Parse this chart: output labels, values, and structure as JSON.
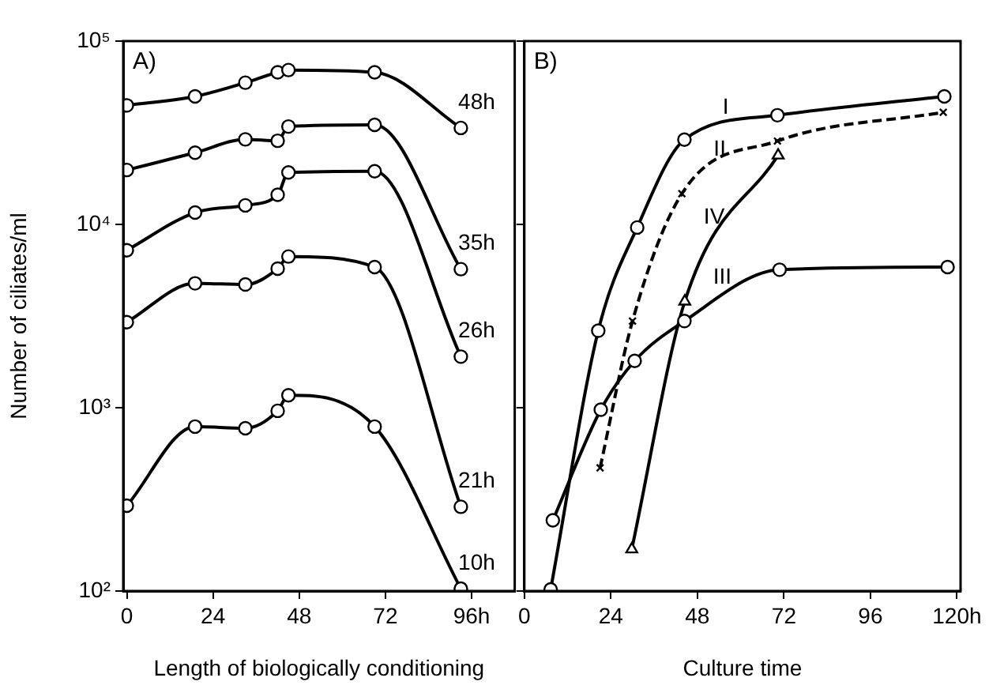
{
  "chart_data": [
    {
      "type": "line",
      "title": "A)",
      "xlabel": "Length of biologically conditioning",
      "ylabel": "Number of ciliates/ml",
      "log": "y",
      "marker": "circle",
      "legend": false,
      "grid": false,
      "x": [
        0,
        19,
        33,
        42,
        45,
        69,
        93
      ],
      "xlim": [
        -1,
        108
      ],
      "xticks": [
        0,
        24,
        48,
        72,
        {
          "value": 96,
          "label": "96h"
        }
      ],
      "ylim": [
        100,
        100000
      ],
      "yticks": [
        {
          "value": 100,
          "label": "10²"
        },
        {
          "value": 1000,
          "label": "10³"
        },
        {
          "value": 10000,
          "label": "10⁴"
        },
        {
          "value": 100000,
          "label": "10⁵"
        }
      ],
      "series": [
        {
          "name": "48h",
          "color": "#000000",
          "values": [
            44600,
            49900,
            59300,
            67600,
            69500,
            67600,
            33600
          ]
        },
        {
          "name": "35h",
          "color": "#000000",
          "values": [
            19800,
            24600,
            29100,
            28600,
            34200,
            34900,
            5700
          ]
        },
        {
          "name": "26h",
          "color": "#000000",
          "values": [
            7230,
            11600,
            12700,
            14500,
            19200,
            19500,
            1900
          ]
        },
        {
          "name": "21h",
          "color": "#000000",
          "values": [
            2930,
            4770,
            4700,
            5740,
            6680,
            5850,
            288
          ]
        },
        {
          "name": "10h",
          "color": "#000000",
          "values": [
            292,
            789,
            773,
            962,
            1170,
            789,
            103
          ]
        }
      ]
    },
    {
      "type": "line",
      "title": "B)",
      "xlabel": "Culture time",
      "log": "y",
      "legend": false,
      "grid": false,
      "tick_labels": "x",
      "xlim": [
        0,
        121
      ],
      "xticks": [
        0,
        24,
        48,
        72,
        96,
        {
          "value": 120,
          "label": "120h"
        }
      ],
      "ylim": [
        100,
        100000
      ],
      "yticks": [
        100,
        1000,
        10000,
        100000
      ],
      "series": [
        {
          "name": "I",
          "color": "#000000",
          "marker": "circle",
          "x": [
            7.3,
            20.5,
            31.3,
            44.4,
            70.2,
            116.5
          ],
          "values": [
            102,
            2630,
            9620,
            29000,
            39400,
            49900
          ]
        },
        {
          "name": "II",
          "color": "#000000",
          "marker": "cross",
          "line_style": "dashed",
          "x": [
            21,
            30,
            43.7,
            70.2,
            116.2
          ],
          "values": [
            470,
            2970,
            14700,
            28500,
            40900
          ]
        },
        {
          "name": "III",
          "color": "#000000",
          "marker": "circle",
          "x": [
            7.9,
            21.2,
            30.6,
            44.4,
            70.8,
            117.4
          ],
          "values": [
            243,
            975,
            1800,
            2970,
            5660,
            5850
          ]
        },
        {
          "name": "IV",
          "color": "#000000",
          "marker": "triangle",
          "x": [
            29.8,
            44.5,
            70.4
          ],
          "values": [
            169,
            3800,
            23800
          ]
        }
      ]
    }
  ]
}
